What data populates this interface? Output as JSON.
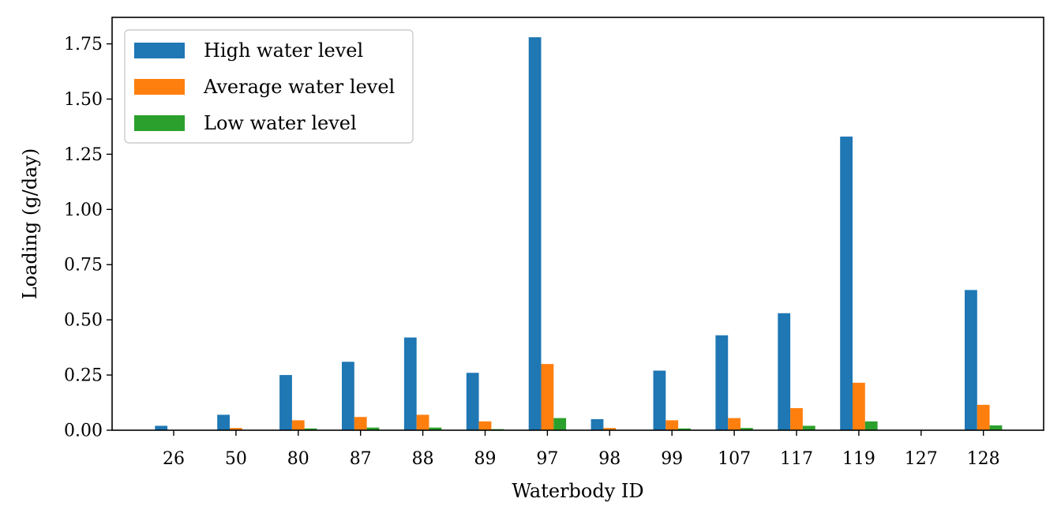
{
  "chart_data": {
    "type": "bar",
    "xlabel": "Waterbody ID",
    "ylabel": "Loading (g/day)",
    "ylim": [
      0,
      1.87
    ],
    "yticks": [
      "0.00",
      "0.25",
      "0.50",
      "0.75",
      "1.00",
      "1.25",
      "1.50",
      "1.75"
    ],
    "categories": [
      "26",
      "50",
      "80",
      "87",
      "88",
      "89",
      "97",
      "98",
      "99",
      "107",
      "117",
      "119",
      "127",
      "128"
    ],
    "series": [
      {
        "name": "High water level",
        "color": "#1f77b4",
        "values": [
          0.02,
          0.07,
          0.25,
          0.31,
          0.42,
          0.26,
          1.78,
          0.05,
          0.27,
          0.43,
          0.53,
          1.33,
          0.0,
          0.635
        ]
      },
      {
        "name": "Average water level",
        "color": "#ff7f0e",
        "values": [
          0.0,
          0.01,
          0.045,
          0.06,
          0.07,
          0.04,
          0.3,
          0.01,
          0.045,
          0.055,
          0.1,
          0.215,
          0.0,
          0.115
        ]
      },
      {
        "name": "Low water level",
        "color": "#2ca02c",
        "values": [
          0.0,
          0.0,
          0.008,
          0.012,
          0.012,
          0.005,
          0.055,
          0.0,
          0.008,
          0.01,
          0.02,
          0.04,
          0.0,
          0.022
        ]
      }
    ],
    "legend_position": "top-left",
    "grid": false
  }
}
